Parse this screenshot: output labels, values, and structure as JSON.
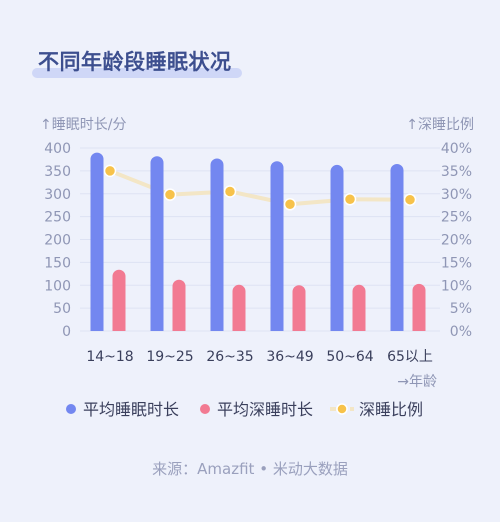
{
  "title": "不同年龄段睡眠状况",
  "source": "来源：Amazfit • 米动大数据",
  "colors": {
    "background": "#eef1fb",
    "sleep_bar": "#7387f0",
    "deep_bar": "#f27a92",
    "ratio_line": "#f3e6c6",
    "ratio_marker": "#f7c24a",
    "axis_text": "#8f96b5",
    "title": "#3d4f8f"
  },
  "legend": {
    "marker_icons": [
      "dot-icon",
      "dot-icon",
      "dot-line-icon"
    ]
  },
  "chart_data": {
    "type": "bar",
    "categories": [
      "14~18",
      "19~25",
      "26~35",
      "36~49",
      "50~64",
      "65以上"
    ],
    "x_axis_arrow_label": "→年龄",
    "left_axis": {
      "label": "↑睡眠时长/分",
      "ylim": [
        0,
        400
      ],
      "ticks": [
        "0",
        "50",
        "100",
        "150",
        "200",
        "250",
        "300",
        "350",
        "400"
      ]
    },
    "right_axis": {
      "label": "↑深睡比例",
      "ylim": [
        0,
        40
      ],
      "ticks": [
        "0%",
        "5%",
        "10%",
        "15%",
        "20%",
        "25%",
        "30%",
        "35%",
        "40%"
      ]
    },
    "series": [
      {
        "name": "平均睡眠时长",
        "type": "bar",
        "axis": "left",
        "values": [
          390,
          382,
          377,
          371,
          363,
          365
        ]
      },
      {
        "name": "平均深睡时长",
        "type": "bar",
        "axis": "left",
        "values": [
          134,
          112,
          101,
          100,
          101,
          103
        ]
      },
      {
        "name": "深睡比例",
        "type": "line",
        "axis": "right",
        "values": [
          35,
          29.8,
          30.5,
          27.7,
          28.8,
          28.7
        ]
      }
    ],
    "grid": true,
    "legend_position": "bottom"
  }
}
